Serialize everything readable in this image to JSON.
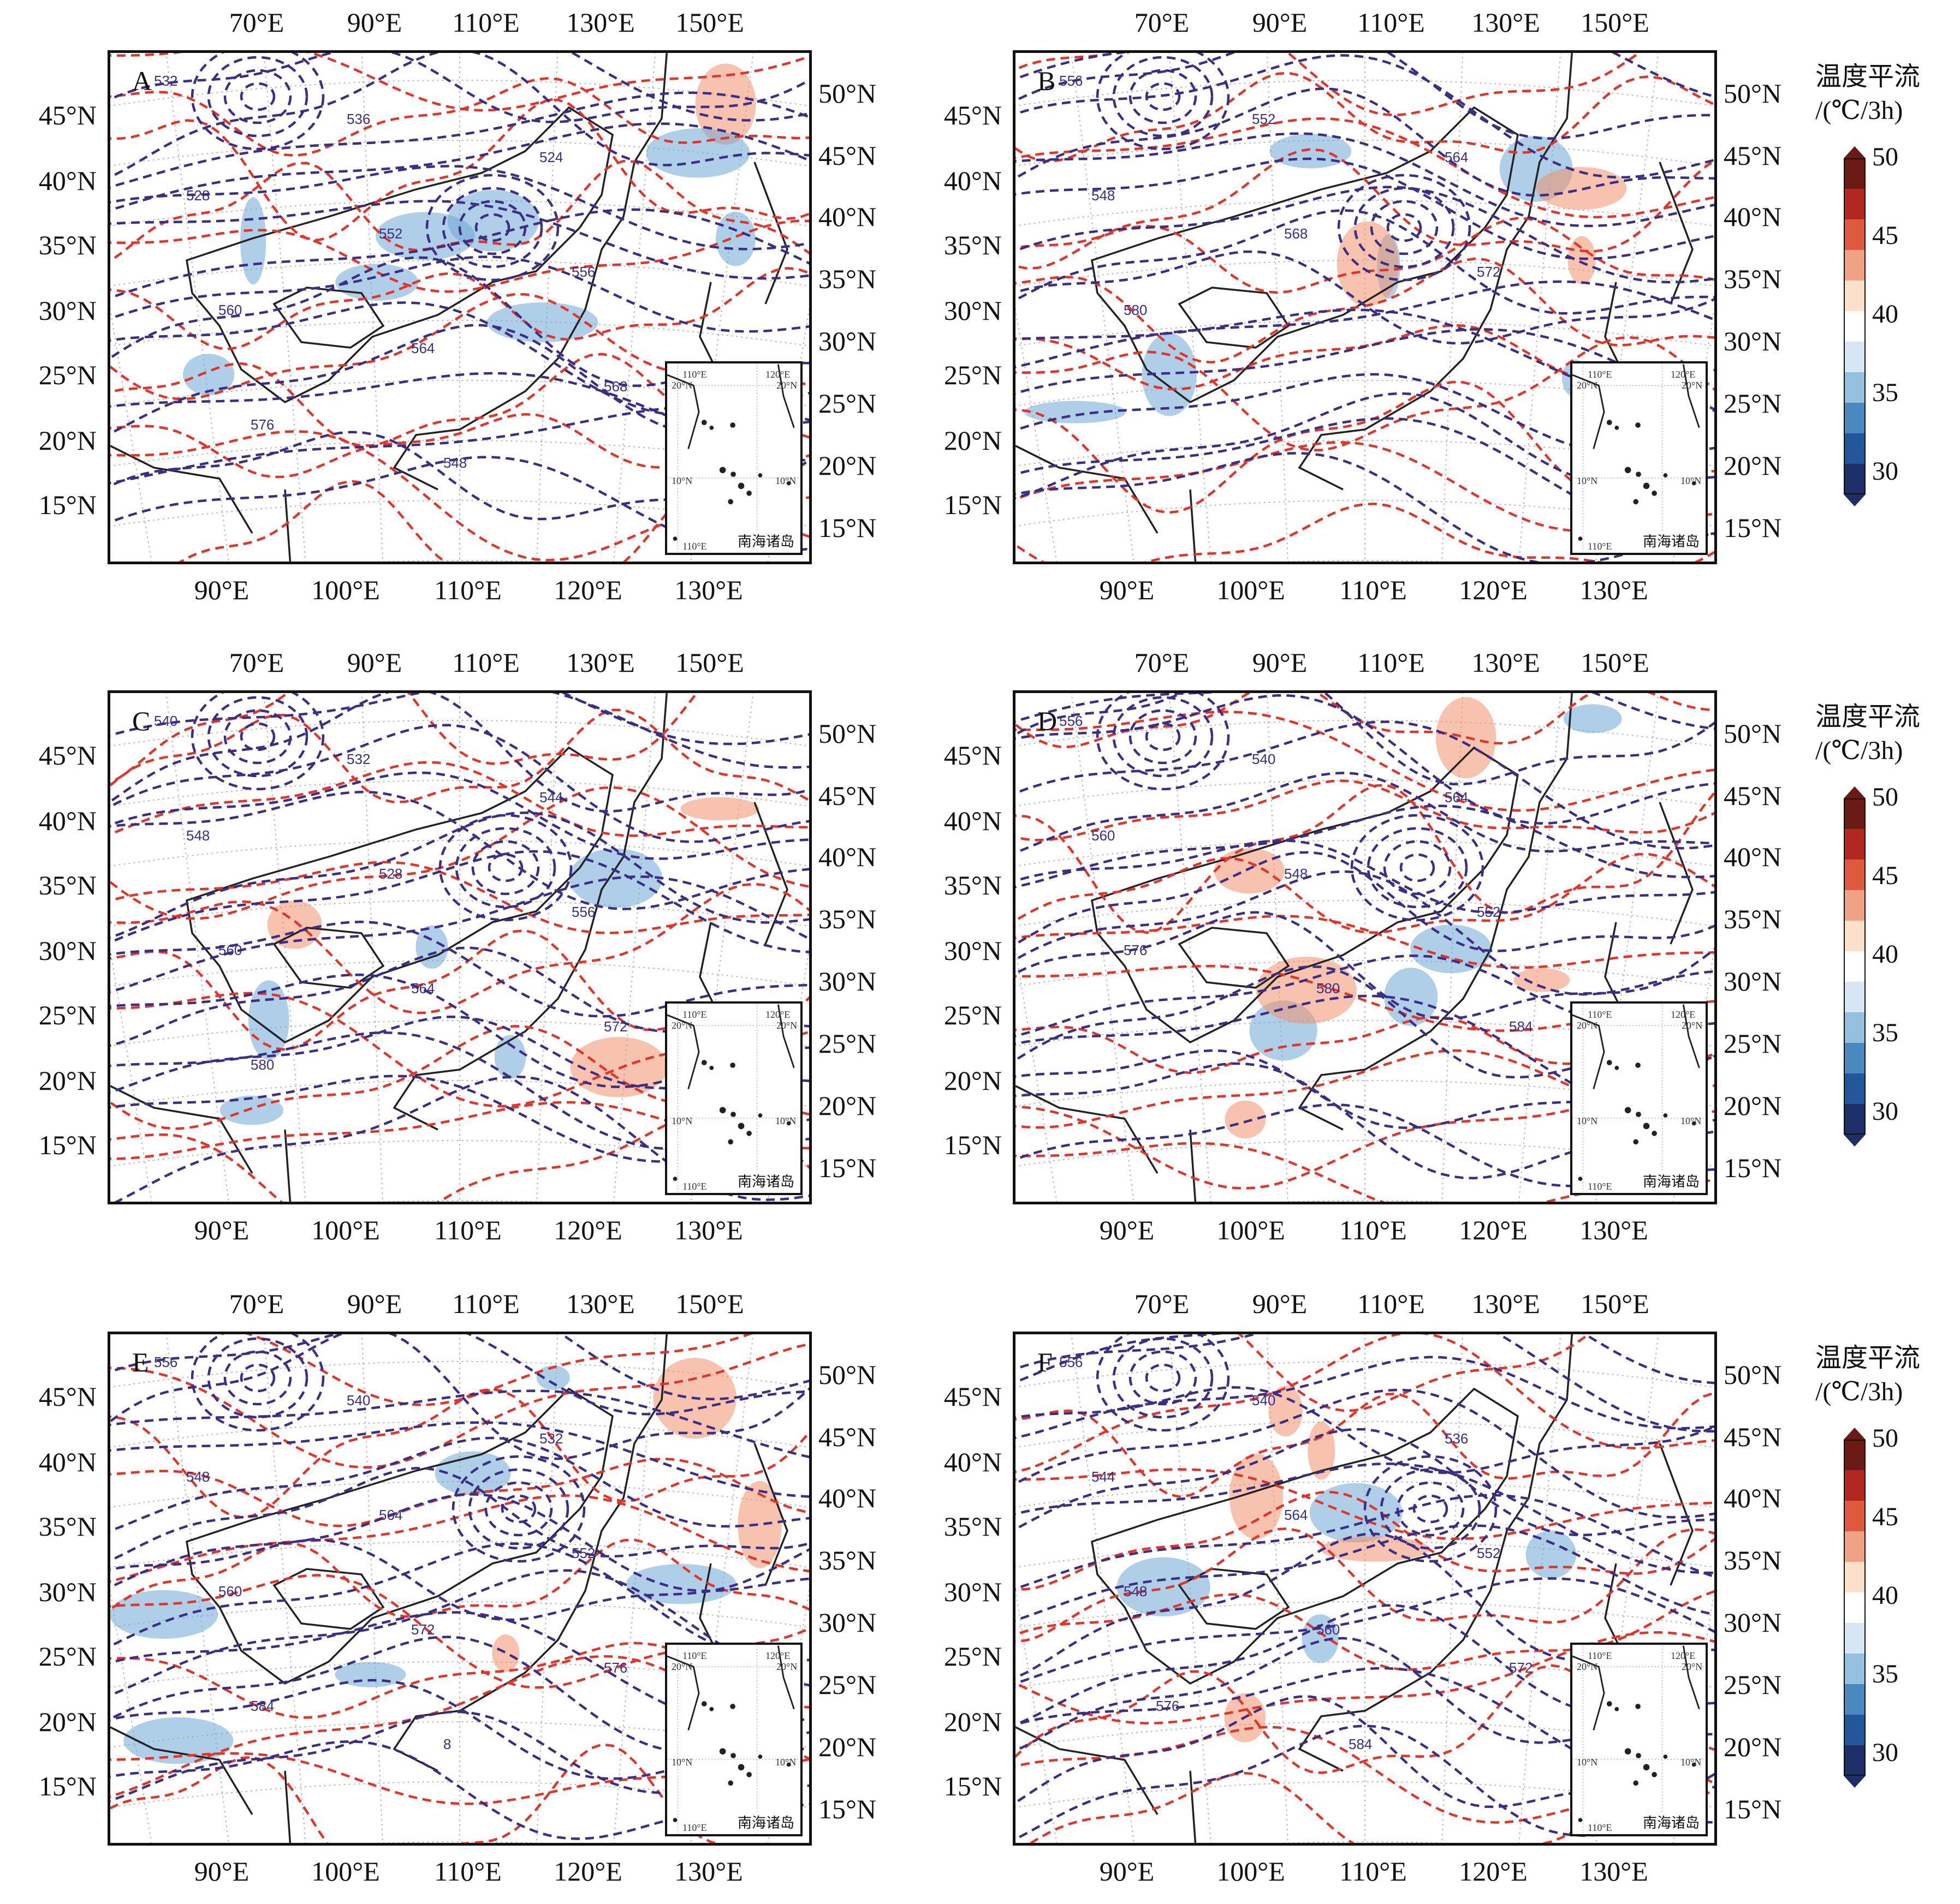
{
  "panels": [
    {
      "letter": "A",
      "contour_labels": [
        "532",
        "536",
        "524",
        "528",
        "552",
        "556",
        "560",
        "564",
        "568",
        "576",
        "548"
      ]
    },
    {
      "letter": "B",
      "contour_labels": [
        "556",
        "552",
        "564",
        "548",
        "568",
        "572",
        "580"
      ]
    },
    {
      "letter": "C",
      "contour_labels": [
        "540",
        "532",
        "544",
        "548",
        "528",
        "556",
        "560",
        "564",
        "572",
        "580"
      ]
    },
    {
      "letter": "D",
      "contour_labels": [
        "556",
        "540",
        "564",
        "560",
        "548",
        "552",
        "576",
        "580",
        "584"
      ]
    },
    {
      "letter": "E",
      "contour_labels": [
        "556",
        "540",
        "532",
        "548",
        "564",
        "552",
        "560",
        "572",
        "576",
        "584",
        "8"
      ]
    },
    {
      "letter": "F",
      "contour_labels": [
        "556",
        "540",
        "536",
        "544",
        "564",
        "552",
        "548",
        "560",
        "572",
        "576",
        "584"
      ]
    }
  ],
  "axes": {
    "lat_left": [
      "45°N",
      "40°N",
      "35°N",
      "30°N",
      "25°N",
      "20°N",
      "15°N"
    ],
    "lat_right": [
      "50°N",
      "45°N",
      "40°N",
      "35°N",
      "30°N",
      "25°N",
      "20°N",
      "15°N"
    ],
    "lon_top": [
      "70°E",
      "90°E",
      "110°E",
      "130°E",
      "150°E"
    ],
    "lon_bottom": [
      "90°E",
      "100°E",
      "110°E",
      "120°E",
      "130°E"
    ]
  },
  "inset": {
    "label": "南海诸岛",
    "ticks": [
      "110°E",
      "120°E",
      "20°N",
      "20°N",
      "10°N",
      "10°N",
      "110°E"
    ]
  },
  "legend": {
    "title_line1": "温度平流",
    "title_line2": "/(℃/3h)",
    "ticks": [
      "50",
      "45",
      "40",
      "35",
      "30"
    ],
    "colors": [
      "#6b1a16",
      "#b2271f",
      "#de5a3f",
      "#f2a284",
      "#fde0cc",
      "#ffffff",
      "#d6e6f3",
      "#96c0df",
      "#4a89c0",
      "#24569b",
      "#1d2e68"
    ]
  },
  "colors": {
    "height_contour": "#3c2e86",
    "temperature_contour": "#e3342a",
    "warm_advection": "#f0916c",
    "cold_advection": "#6ea7d6"
  }
}
